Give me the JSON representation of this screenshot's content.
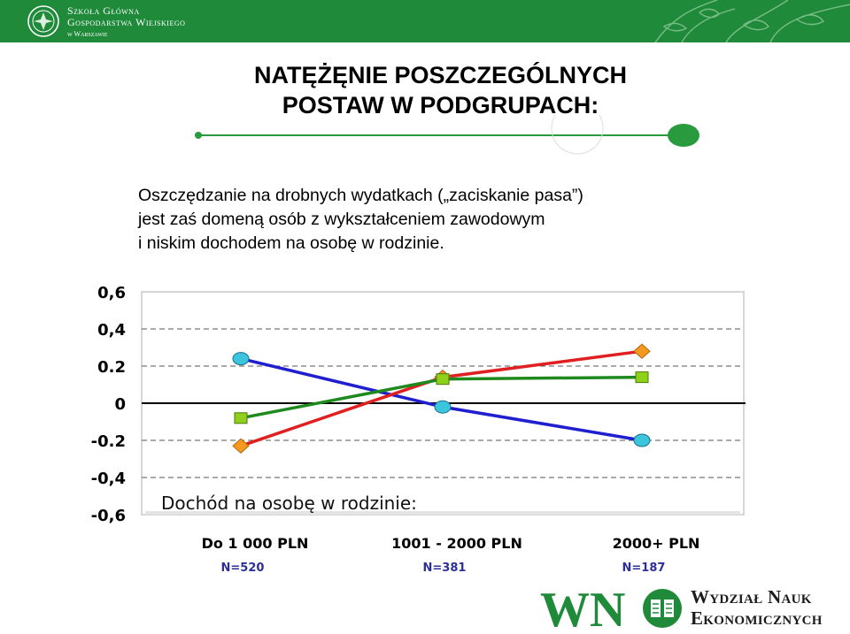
{
  "header": {
    "school_line1": "Szkoła Główna",
    "school_line2": "Gospodarstwa Wiejskiego",
    "school_line3": "w Warszawie"
  },
  "slide": {
    "title_line1": "NATĘŻĘNIE POSZCZEGÓLNYCH",
    "title_line2": "POSTAW W PODGRUPACH:",
    "desc_line1": "Oszczędzanie na drobnych wydatkach („zaciskanie pasa”)",
    "desc_line2": "jest zaś domeną osób z wykształceniem zawodowym",
    "desc_line3": "i niskim dochodem na osobę w rodzinie."
  },
  "chart_data": {
    "type": "line",
    "title": "",
    "subtitle": "Dochód na osobę w rodzinie:",
    "ylim": [
      -0.6,
      0.6
    ],
    "yticks": [
      0.6,
      0.4,
      0.2,
      0,
      -0.2,
      -0.4,
      -0.6
    ],
    "ytick_labels": [
      "0,6",
      "0,4",
      "0.2",
      "0",
      "-0.2",
      "-0,4",
      "-0,6"
    ],
    "categories": [
      "Do 1 000 PLN",
      "1001 - 2000 PLN",
      "2000+ PLN"
    ],
    "category_n": [
      "N=520",
      "N=381",
      "N=187"
    ],
    "grid": "dashed horizontal",
    "series": [
      {
        "color": "#1f1fd0",
        "marker": "circle",
        "marker_color": "#3cc6de",
        "values": [
          0.24,
          -0.02,
          -0.2
        ]
      },
      {
        "color": "#e02020",
        "marker": "diamond",
        "marker_color": "#f39a1e",
        "values": [
          -0.23,
          0.14,
          0.28
        ]
      },
      {
        "color": "#1e8a1e",
        "marker": "square",
        "marker_color": "#8fd11a",
        "values": [
          -0.08,
          0.13,
          0.14
        ]
      }
    ]
  },
  "footer": {
    "logo_letters": "WN",
    "faculty_line1": "Wydział Nauk",
    "faculty_line2": "Ekonomicznych"
  },
  "colors": {
    "green": "#1f8a3a",
    "axis_label": "#000000",
    "n_label": "#2f2f9a"
  }
}
